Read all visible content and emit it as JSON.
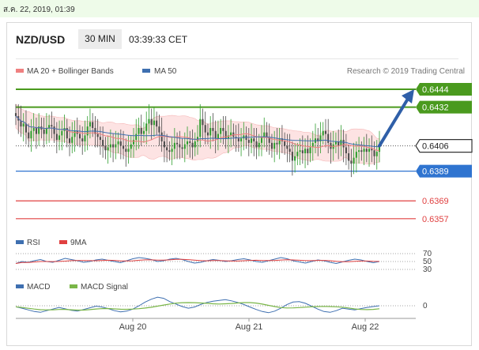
{
  "timestamp": "ส.ค. 22, 2019, 01:39",
  "header": {
    "symbol": "NZD/USD",
    "timeframe": "30 MIN",
    "time": "03:39:33 CET"
  },
  "legend": {
    "ma_bands": "MA 20 + Bollinger Bands",
    "ma50": "MA 50",
    "credit": "Research © 2019 Trading Central",
    "rsi": "RSI",
    "rsi_ma": "9MA",
    "macd": "MACD",
    "macd_signal": "MACD Signal"
  },
  "colors": {
    "ma_bands": "#f08080",
    "ma50": "#3e6fb0",
    "resistance": "#4a9a1e",
    "support_blue": "#2f74d0",
    "support_red": "#e04040",
    "candle_up": "#2e9e2e",
    "candle_down": "#4b4b4b",
    "band_fill": "#fde3e3",
    "macd_signal": "#7ab648"
  },
  "chart_data": [
    {
      "type": "candlestick",
      "title": "NZD/USD",
      "timeframe": "30 MIN",
      "x_ticks": [
        "Aug 20",
        "Aug 21",
        "Aug 22"
      ],
      "ylim": [
        0.635,
        0.6452
      ],
      "current_price": 0.6406,
      "levels": [
        {
          "label": "0.6444",
          "value": 0.6444,
          "kind": "resistance"
        },
        {
          "label": "0.6432",
          "value": 0.6432,
          "kind": "resistance"
        },
        {
          "label": "0.6406",
          "value": 0.6406,
          "kind": "current"
        },
        {
          "label": "0.6389",
          "value": 0.6389,
          "kind": "support"
        },
        {
          "label": "0.6369",
          "value": 0.6369,
          "kind": "support"
        },
        {
          "label": "0.6357",
          "value": 0.6357,
          "kind": "support"
        }
      ],
      "forecast_target": 0.6444,
      "closes": [
        0.6426,
        0.6423,
        0.6419,
        0.6421,
        0.6415,
        0.6411,
        0.6416,
        0.6418,
        0.6414,
        0.6419,
        0.6417,
        0.6414,
        0.6418,
        0.642,
        0.6419,
        0.6414,
        0.641,
        0.6413,
        0.6416,
        0.6418,
        0.6411,
        0.6408,
        0.6412,
        0.6416,
        0.6414,
        0.6411,
        0.6409,
        0.6413,
        0.6419,
        0.6422,
        0.6418,
        0.6414,
        0.6412,
        0.641,
        0.6406,
        0.6403,
        0.6405,
        0.6407,
        0.6405,
        0.6407,
        0.6409,
        0.6406,
        0.6404,
        0.6402,
        0.6404,
        0.6407,
        0.641,
        0.6414,
        0.6418,
        0.6414,
        0.6416,
        0.6421,
        0.6424,
        0.642,
        0.6423,
        0.6419,
        0.6415,
        0.6409,
        0.6405,
        0.6403,
        0.6402,
        0.6404,
        0.6408,
        0.6407,
        0.6405,
        0.6404,
        0.6407,
        0.6409,
        0.6408,
        0.6405,
        0.6409,
        0.6412,
        0.6424,
        0.642,
        0.6415,
        0.6413,
        0.6418,
        0.6416,
        0.6411,
        0.6414,
        0.6418,
        0.6416,
        0.6411,
        0.6413,
        0.6415,
        0.6412,
        0.6411,
        0.6409,
        0.6411,
        0.6413,
        0.641,
        0.6408,
        0.6411,
        0.6409,
        0.6405,
        0.6408,
        0.6412,
        0.6415,
        0.6412,
        0.6408,
        0.6404,
        0.6408,
        0.6407,
        0.6411,
        0.6409,
        0.6406,
        0.6404,
        0.6402,
        0.6396,
        0.6399,
        0.6402,
        0.6403,
        0.6401,
        0.6404,
        0.6401,
        0.6405,
        0.6408,
        0.6411,
        0.6409,
        0.6413,
        0.6416,
        0.6414,
        0.6408,
        0.6404,
        0.6407,
        0.6409,
        0.6406,
        0.641,
        0.6405,
        0.6401,
        0.6396,
        0.6394,
        0.6398,
        0.6402,
        0.6403,
        0.6402,
        0.6404,
        0.6402,
        0.6404,
        0.6403,
        0.6399,
        0.6402,
        0.6406
      ]
    },
    {
      "type": "line",
      "title": "RSI",
      "series": [
        {
          "name": "RSI"
        },
        {
          "name": "9MA"
        }
      ],
      "y_ticks": [
        70,
        50,
        30
      ],
      "ylim": [
        0,
        100
      ],
      "rsi_values": [
        45,
        50,
        48,
        52,
        55,
        50,
        48,
        53,
        58,
        55,
        52,
        48,
        50,
        54,
        56,
        53,
        50,
        47,
        52,
        57,
        60,
        58,
        55,
        50,
        52,
        56,
        58,
        55,
        50,
        46,
        48,
        52,
        55,
        53,
        50,
        52,
        55,
        57,
        54,
        50,
        48,
        52,
        56,
        60,
        57,
        52,
        49,
        46,
        50,
        54,
        52,
        48,
        45,
        49,
        53,
        56,
        54,
        50,
        47,
        50
      ]
    },
    {
      "type": "line",
      "title": "MACD",
      "series": [
        {
          "name": "MACD"
        },
        {
          "name": "MACD Signal"
        }
      ],
      "y_ticks": [
        0
      ],
      "macd_values": [
        -0.5,
        -1.2,
        -2.0,
        -2.8,
        -3.2,
        -2.4,
        -1.6,
        -0.8,
        -1.5,
        -2.2,
        -2.6,
        -1.8,
        -1.0,
        -0.2,
        -0.6,
        -1.4,
        -2.4,
        -3.0,
        -2.6,
        -1.6,
        0.0,
        1.8,
        3.2,
        4.2,
        3.6,
        2.0,
        0.8,
        -0.4,
        -1.2,
        -0.6,
        0.6,
        1.6,
        2.2,
        2.6,
        3.0,
        2.4,
        1.6,
        0.6,
        -0.6,
        -1.8,
        -2.8,
        -3.4,
        -2.6,
        -1.2,
        0.6,
        1.8,
        2.0,
        1.2,
        -0.2,
        -1.6,
        -2.8,
        -3.2,
        -2.4,
        -1.2,
        -1.6,
        -2.0,
        -1.4,
        -0.8,
        -0.4,
        0.0
      ]
    }
  ]
}
